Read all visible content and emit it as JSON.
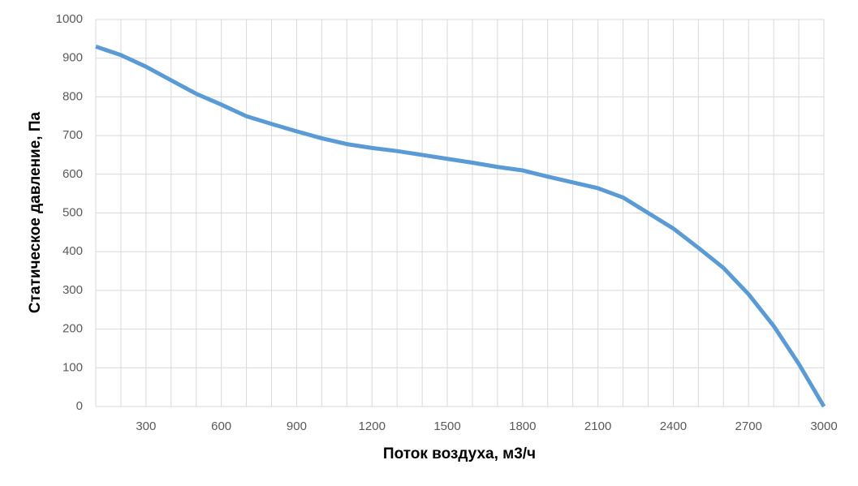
{
  "chart_data": {
    "type": "line",
    "x_label": "Поток воздуха, м3/ч",
    "y_label": "Статическое давление, Па",
    "x": [
      100,
      200,
      300,
      400,
      500,
      600,
      700,
      800,
      900,
      1000,
      1100,
      1200,
      1300,
      1400,
      1500,
      1600,
      1700,
      1800,
      1900,
      2000,
      2100,
      2200,
      2300,
      2400,
      2500,
      2600,
      2700,
      2800,
      2900,
      3000
    ],
    "series": [
      {
        "color": "#5b9bd5",
        "values": [
          930,
          908,
          878,
          843,
          808,
          780,
          750,
          730,
          711,
          693,
          678,
          668,
          660,
          650,
          640,
          630,
          619,
          610,
          594,
          579,
          564,
          540,
          500,
          460,
          410,
          358,
          290,
          208,
          110,
          0
        ]
      }
    ],
    "xlim": [
      100,
      3000
    ],
    "xticks": [
      300,
      600,
      900,
      1200,
      1500,
      1800,
      2100,
      2400,
      2700,
      3000
    ],
    "x_minor_grid": [
      100,
      200,
      400,
      500,
      700,
      800,
      1000,
      1100,
      1300,
      1400,
      1600,
      1700,
      1900,
      2000,
      2200,
      2300,
      2500,
      2600,
      2800,
      2900
    ],
    "ylim": [
      0,
      1000
    ],
    "yticks": [
      0,
      100,
      200,
      300,
      400,
      500,
      600,
      700,
      800,
      900,
      1000
    ],
    "grid": true
  }
}
